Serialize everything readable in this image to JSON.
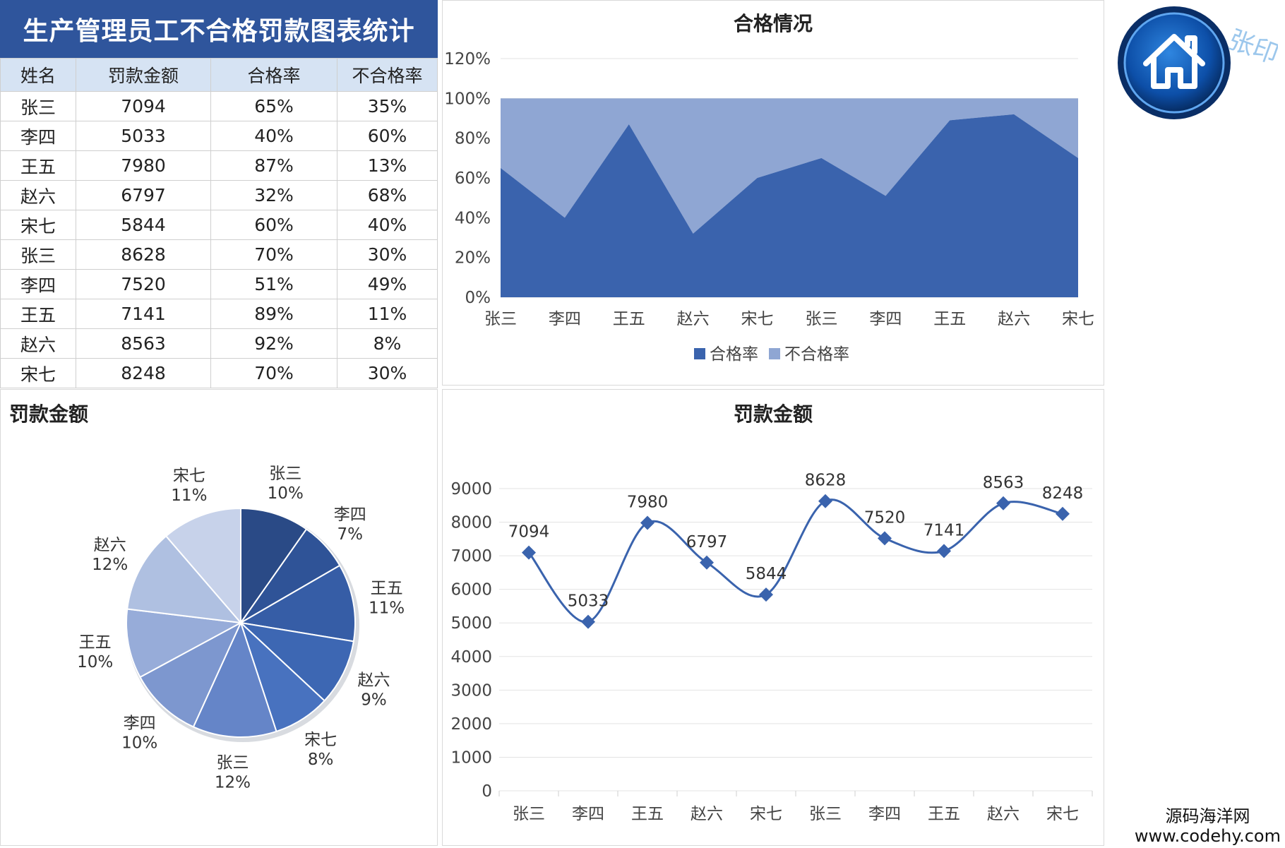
{
  "table": {
    "title": "生产管理员工不合格罚款图表统计",
    "headers": [
      "姓名",
      "罚款金额",
      "合格率",
      "不合格率"
    ],
    "rows": [
      [
        "张三",
        "7094",
        "65%",
        "35%"
      ],
      [
        "李四",
        "5033",
        "40%",
        "60%"
      ],
      [
        "王五",
        "7980",
        "87%",
        "13%"
      ],
      [
        "赵六",
        "6797",
        "32%",
        "68%"
      ],
      [
        "宋七",
        "5844",
        "60%",
        "40%"
      ],
      [
        "张三",
        "8628",
        "70%",
        "30%"
      ],
      [
        "李四",
        "7520",
        "51%",
        "49%"
      ],
      [
        "王五",
        "7141",
        "89%",
        "11%"
      ],
      [
        "赵六",
        "8563",
        "92%",
        "8%"
      ],
      [
        "宋七",
        "8248",
        "70%",
        "30%"
      ]
    ]
  },
  "logo": {
    "icon": "home-icon",
    "stamp_text": "张印",
    "colors": {
      "ring": "#0b3f86",
      "inner": "#1565c0"
    }
  },
  "watermark": {
    "line1": "源码海洋网",
    "line2": "www.codehy.com"
  },
  "colors": {
    "dark": "#3a63ad",
    "light": "#8fa6d3",
    "header": "#2f559c"
  },
  "chart_data": [
    {
      "type": "area",
      "title": "合格情况",
      "categories": [
        "张三",
        "李四",
        "王五",
        "赵六",
        "宋七",
        "张三",
        "李四",
        "王五",
        "赵六",
        "宋七"
      ],
      "series": [
        {
          "name": "合格率",
          "values": [
            65,
            40,
            87,
            32,
            60,
            70,
            51,
            89,
            92,
            70
          ],
          "color": "#3a63ad"
        },
        {
          "name": "不合格率",
          "values": [
            35,
            60,
            13,
            68,
            40,
            30,
            49,
            11,
            8,
            30
          ],
          "color": "#8fa6d3"
        }
      ],
      "stacked": true,
      "ylim": [
        0,
        120
      ],
      "yticks": [
        "0%",
        "20%",
        "40%",
        "60%",
        "80%",
        "100%",
        "120%"
      ],
      "grid": true,
      "legend": "bottom"
    },
    {
      "type": "pie",
      "title": "罚款金额",
      "slices": [
        {
          "name": "张三",
          "label": "10%",
          "value": 7094,
          "color": "#2a4a86"
        },
        {
          "name": "李四",
          "label": "7%",
          "value": 5033,
          "color": "#2f5397"
        },
        {
          "name": "王五",
          "label": "11%",
          "value": 7980,
          "color": "#365da6"
        },
        {
          "name": "赵六",
          "label": "9%",
          "value": 6797,
          "color": "#3d67b3"
        },
        {
          "name": "宋七",
          "label": "8%",
          "value": 5844,
          "color": "#4872bf"
        },
        {
          "name": "张三",
          "label": "12%",
          "value": 8628,
          "color": "#6585c8"
        },
        {
          "name": "李四",
          "label": "10%",
          "value": 7520,
          "color": "#7d97cf"
        },
        {
          "name": "王五",
          "label": "10%",
          "value": 7141,
          "color": "#97acd9"
        },
        {
          "name": "赵六",
          "label": "12%",
          "value": 8563,
          "color": "#afc0e1"
        },
        {
          "name": "宋七",
          "label": "11%",
          "value": 8248,
          "color": "#c7d2ea"
        }
      ]
    },
    {
      "type": "line",
      "title": "罚款金额",
      "categories": [
        "张三",
        "李四",
        "王五",
        "赵六",
        "宋七",
        "张三",
        "李四",
        "王五",
        "赵六",
        "宋七"
      ],
      "values": [
        7094,
        5033,
        7980,
        6797,
        5844,
        8628,
        7520,
        7141,
        8563,
        8248
      ],
      "ylim": [
        0,
        9000
      ],
      "yticks": [
        0,
        1000,
        2000,
        3000,
        4000,
        5000,
        6000,
        7000,
        8000,
        9000
      ],
      "smooth": true,
      "marker": "diamond",
      "color": "#3a63ad",
      "grid": true
    }
  ]
}
